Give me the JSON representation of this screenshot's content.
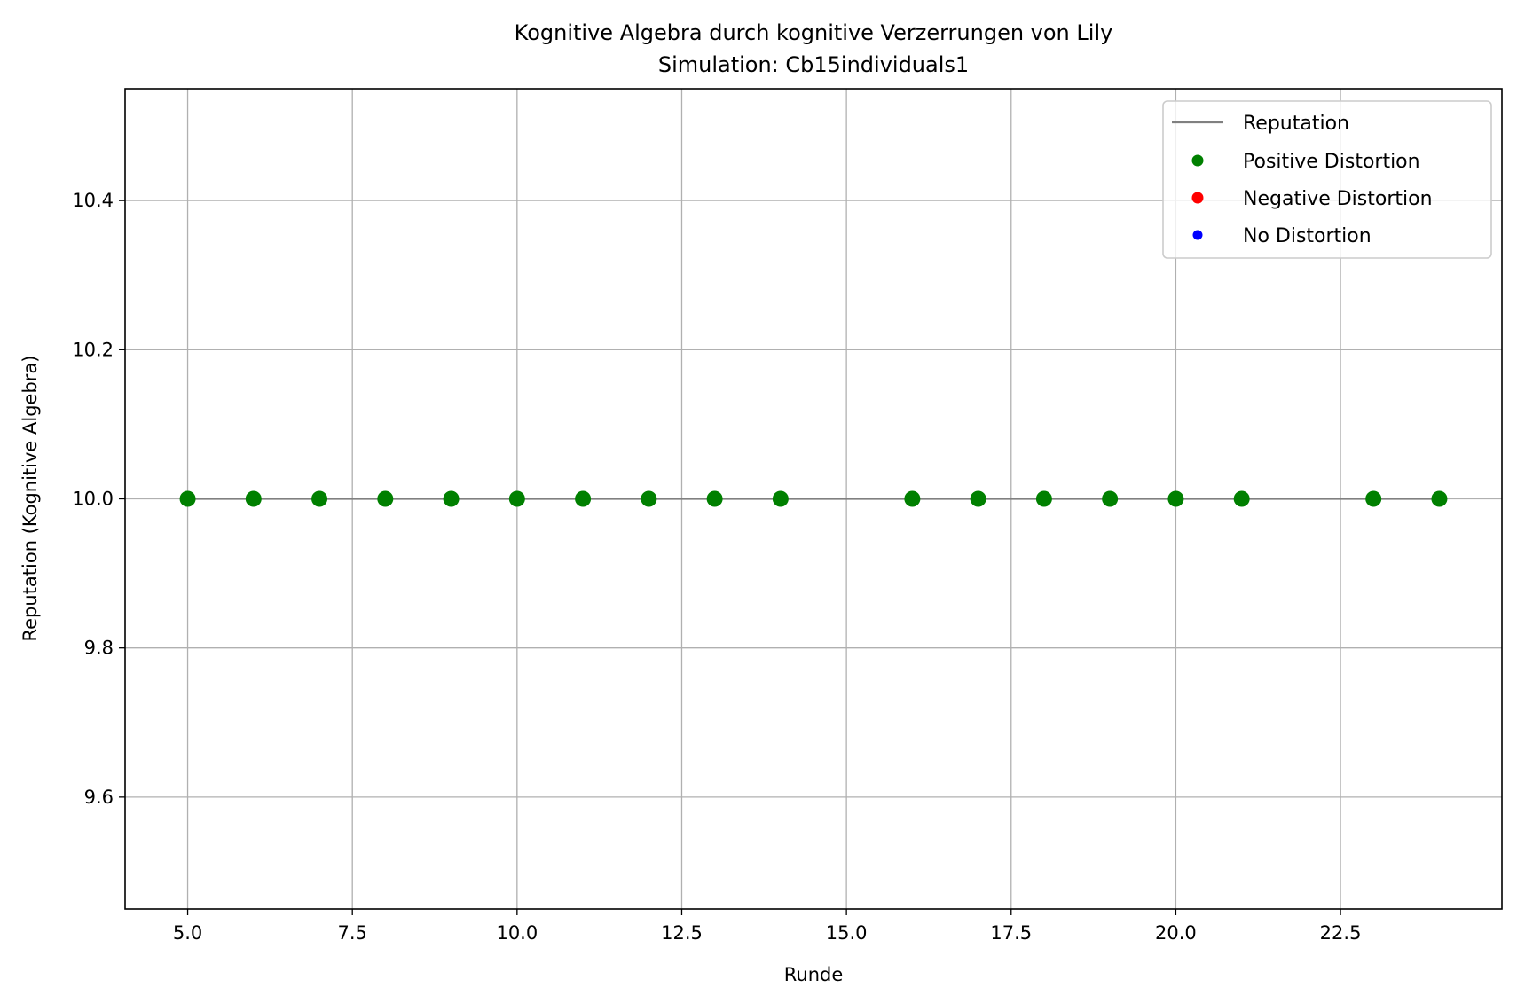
{
  "chart_data": {
    "type": "scatter",
    "title": "Kognitive Algebra durch kognitive Verzerrungen von Lily",
    "subtitle": "Simulation: Cb15individuals1",
    "xlabel": "Runde",
    "ylabel": "Reputation (Kognitive Algebra)",
    "xlim": [
      4.05,
      24.95
    ],
    "ylim": [
      9.45,
      10.55
    ],
    "x_ticks": [
      5.0,
      7.5,
      10.0,
      12.5,
      15.0,
      17.5,
      20.0,
      22.5
    ],
    "x_tick_labels": [
      "5.0",
      "7.5",
      "10.0",
      "12.5",
      "15.0",
      "17.5",
      "20.0",
      "22.5"
    ],
    "y_ticks": [
      9.6,
      9.8,
      10.0,
      10.2,
      10.4
    ],
    "y_tick_labels": [
      "9.6",
      "9.8",
      "10.0",
      "10.2",
      "10.4"
    ],
    "grid": true,
    "legend_position": "top-right",
    "series": [
      {
        "name": "Reputation",
        "kind": "line",
        "color": "#808080",
        "x": [
          5,
          6,
          7,
          8,
          9,
          10,
          11,
          12,
          13,
          14,
          15,
          16,
          17,
          18,
          19,
          20,
          21,
          22,
          23,
          24
        ],
        "y": [
          10.0,
          10.0,
          10.0,
          10.0,
          10.0,
          10.0,
          10.0,
          10.0,
          10.0,
          10.0,
          10.0,
          10.0,
          10.0,
          10.0,
          10.0,
          10.0,
          10.0,
          10.0,
          10.0,
          10.0
        ]
      },
      {
        "name": "Positive Distortion",
        "kind": "points",
        "color": "#008000",
        "x": [
          5,
          6,
          7,
          8,
          9,
          10,
          11,
          12,
          13,
          14,
          16,
          17,
          18,
          19,
          20,
          21,
          23,
          24
        ],
        "y": [
          10.0,
          10.0,
          10.0,
          10.0,
          10.0,
          10.0,
          10.0,
          10.0,
          10.0,
          10.0,
          10.0,
          10.0,
          10.0,
          10.0,
          10.0,
          10.0,
          10.0,
          10.0
        ]
      },
      {
        "name": "Negative Distortion",
        "kind": "points",
        "color": "#ff0000",
        "x": [],
        "y": []
      },
      {
        "name": "No Distortion",
        "kind": "points",
        "color": "#0000ff",
        "x": [],
        "y": []
      }
    ]
  }
}
